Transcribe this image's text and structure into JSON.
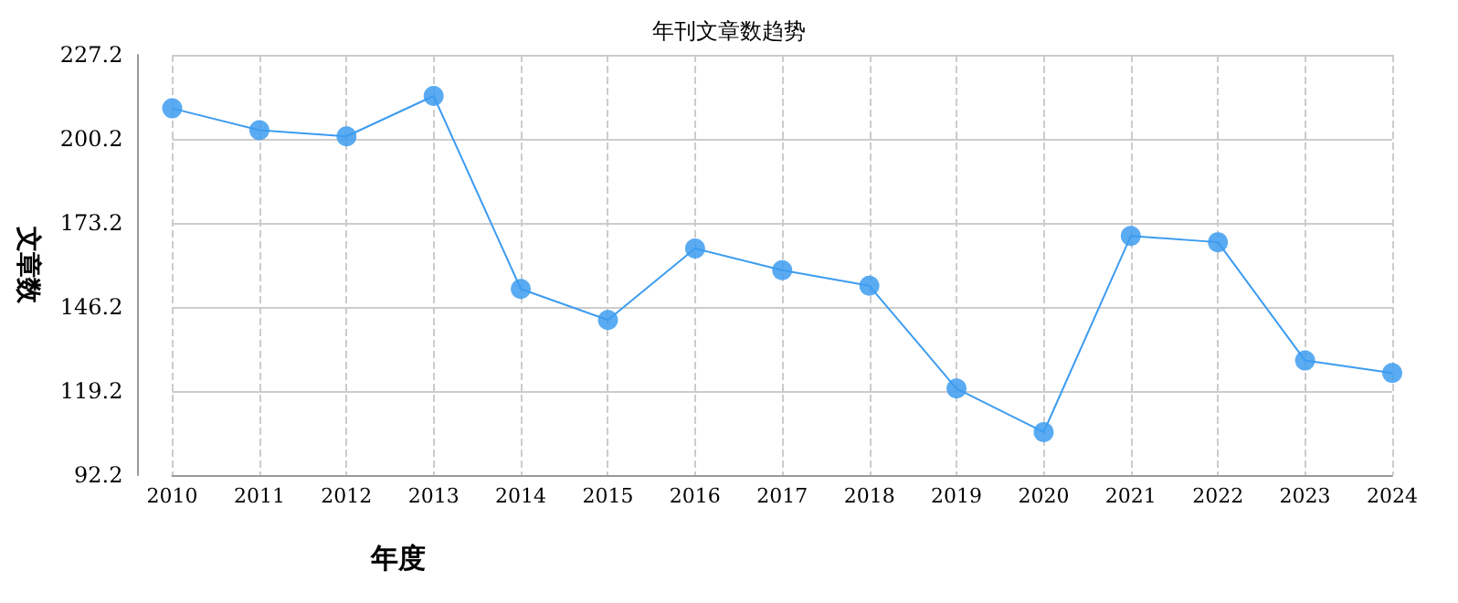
{
  "chart_data": {
    "type": "line",
    "title": "年刊文章数趋势",
    "xlabel": "年度",
    "ylabel": "文章数",
    "categories": [
      "2010",
      "2011",
      "2012",
      "2013",
      "2014",
      "2015",
      "2016",
      "2017",
      "2018",
      "2019",
      "2020",
      "2021",
      "2022",
      "2023",
      "2024"
    ],
    "series": [
      {
        "color": "#3d9cf0",
        "values": [
          210,
          203,
          201,
          214,
          152,
          142,
          165,
          158,
          153,
          120,
          106,
          169,
          167,
          129,
          125
        ]
      }
    ],
    "ylim": [
      92.2,
      227.2
    ],
    "yticks": [
      92.2,
      119.2,
      146.2,
      173.2,
      200.2,
      227.2
    ],
    "grid": true,
    "marker": "circle",
    "line_style": "solid"
  }
}
